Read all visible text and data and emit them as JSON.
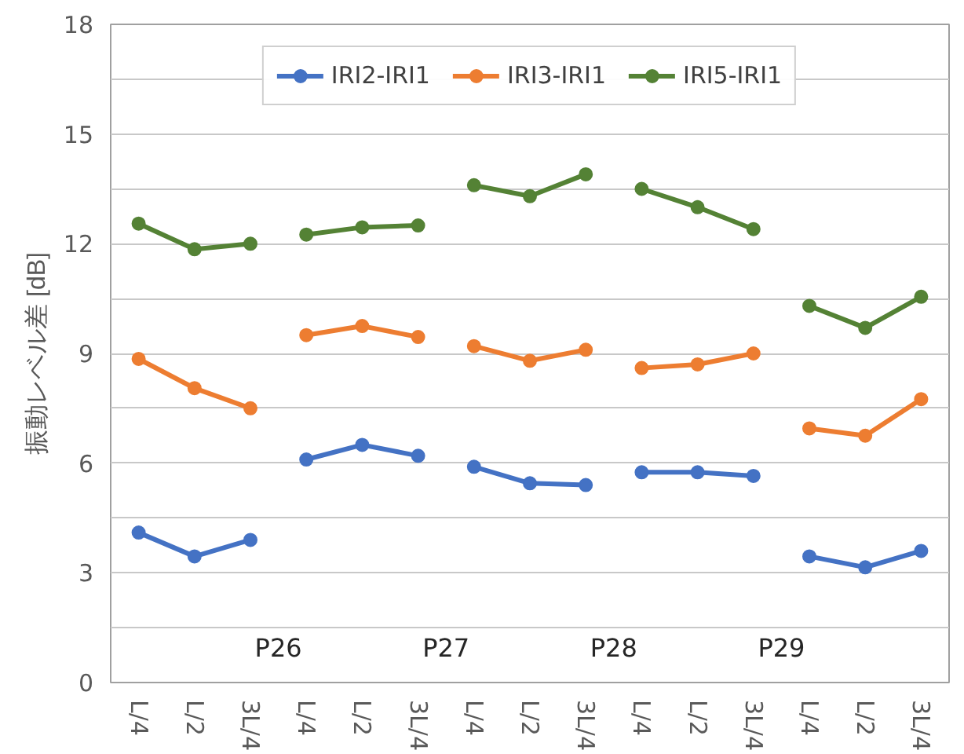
{
  "chart_data": {
    "type": "line",
    "ylabel": "振動レベル差 [dB]",
    "categories": [
      "L/4",
      "L/2",
      "3L/4",
      "L/4",
      "L/2",
      "3L/4",
      "L/4",
      "L/2",
      "3L/4",
      "L/4",
      "L/2",
      "3L/4",
      "L/4",
      "L/2",
      "3L/4"
    ],
    "series": [
      {
        "name": "IRI2-IRI1",
        "color": "#4472c4",
        "values": [
          4.1,
          3.45,
          3.9,
          null,
          null,
          null,
          null,
          null,
          null,
          null,
          null,
          null,
          null,
          null,
          null
        ]
      },
      {
        "name": "IRI3-IRI1",
        "color": "#ed7d31",
        "values": [
          8.85,
          8.05,
          7.5,
          null,
          null,
          null,
          null,
          null,
          null,
          null,
          null,
          null,
          null,
          null,
          null
        ]
      },
      {
        "name": "IRI5-IRI1",
        "color": "#548235",
        "values": [
          12.55,
          11.85,
          12.0,
          null,
          null,
          null,
          null,
          null,
          null,
          null,
          null,
          null,
          null,
          null,
          null
        ]
      },
      {
        "color": "#4472c4",
        "values": [
          null,
          null,
          null,
          6.1,
          6.5,
          6.2,
          null,
          null,
          null,
          null,
          null,
          null,
          null,
          null,
          null
        ]
      },
      {
        "color": "#ed7d31",
        "values": [
          null,
          null,
          null,
          9.5,
          9.75,
          9.45,
          null,
          null,
          null,
          null,
          null,
          null,
          null,
          null,
          null
        ]
      },
      {
        "color": "#548235",
        "values": [
          null,
          null,
          null,
          12.25,
          12.45,
          12.5,
          null,
          null,
          null,
          null,
          null,
          null,
          null,
          null,
          null
        ]
      },
      {
        "color": "#4472c4",
        "values": [
          null,
          null,
          null,
          null,
          null,
          null,
          5.9,
          5.45,
          5.4,
          null,
          null,
          null,
          null,
          null,
          null
        ]
      },
      {
        "color": "#ed7d31",
        "values": [
          null,
          null,
          null,
          null,
          null,
          null,
          9.2,
          8.8,
          9.1,
          null,
          null,
          null,
          null,
          null,
          null
        ]
      },
      {
        "color": "#548235",
        "values": [
          null,
          null,
          null,
          null,
          null,
          null,
          13.6,
          13.3,
          13.9,
          null,
          null,
          null,
          null,
          null,
          null
        ]
      },
      {
        "color": "#4472c4",
        "values": [
          null,
          null,
          null,
          null,
          null,
          null,
          null,
          null,
          null,
          5.75,
          5.75,
          5.65,
          null,
          null,
          null
        ]
      },
      {
        "color": "#ed7d31",
        "values": [
          null,
          null,
          null,
          null,
          null,
          null,
          null,
          null,
          null,
          8.6,
          8.7,
          9.0,
          null,
          null,
          null
        ]
      },
      {
        "color": "#548235",
        "values": [
          null,
          null,
          null,
          null,
          null,
          null,
          null,
          null,
          null,
          13.5,
          13.0,
          12.4,
          null,
          null,
          null
        ]
      },
      {
        "color": "#4472c4",
        "values": [
          null,
          null,
          null,
          null,
          null,
          null,
          null,
          null,
          null,
          null,
          null,
          null,
          3.45,
          3.15,
          3.6
        ]
      },
      {
        "color": "#ed7d31",
        "values": [
          null,
          null,
          null,
          null,
          null,
          null,
          null,
          null,
          null,
          null,
          null,
          null,
          6.95,
          6.75,
          7.75
        ]
      },
      {
        "color": "#548235",
        "values": [
          null,
          null,
          null,
          null,
          null,
          null,
          null,
          null,
          null,
          null,
          null,
          null,
          10.3,
          9.7,
          10.55
        ]
      }
    ],
    "ylim": [
      0,
      18
    ],
    "yticks": [
      0,
      {
        "value": 1.5,
        "label": null
      },
      3,
      {
        "value": 4.5,
        "label": null
      },
      6,
      {
        "value": 7.5,
        "label": null
      },
      9,
      {
        "value": 10.5,
        "label": null
      },
      12,
      {
        "value": 13.5,
        "label": null
      },
      15,
      {
        "value": 16.5,
        "label": null
      },
      18
    ],
    "annotations": [
      "P26",
      "P27",
      "P28",
      "P29"
    ],
    "grid": "y",
    "legend": "top",
    "marker": "circle",
    "line_style": "solid"
  }
}
